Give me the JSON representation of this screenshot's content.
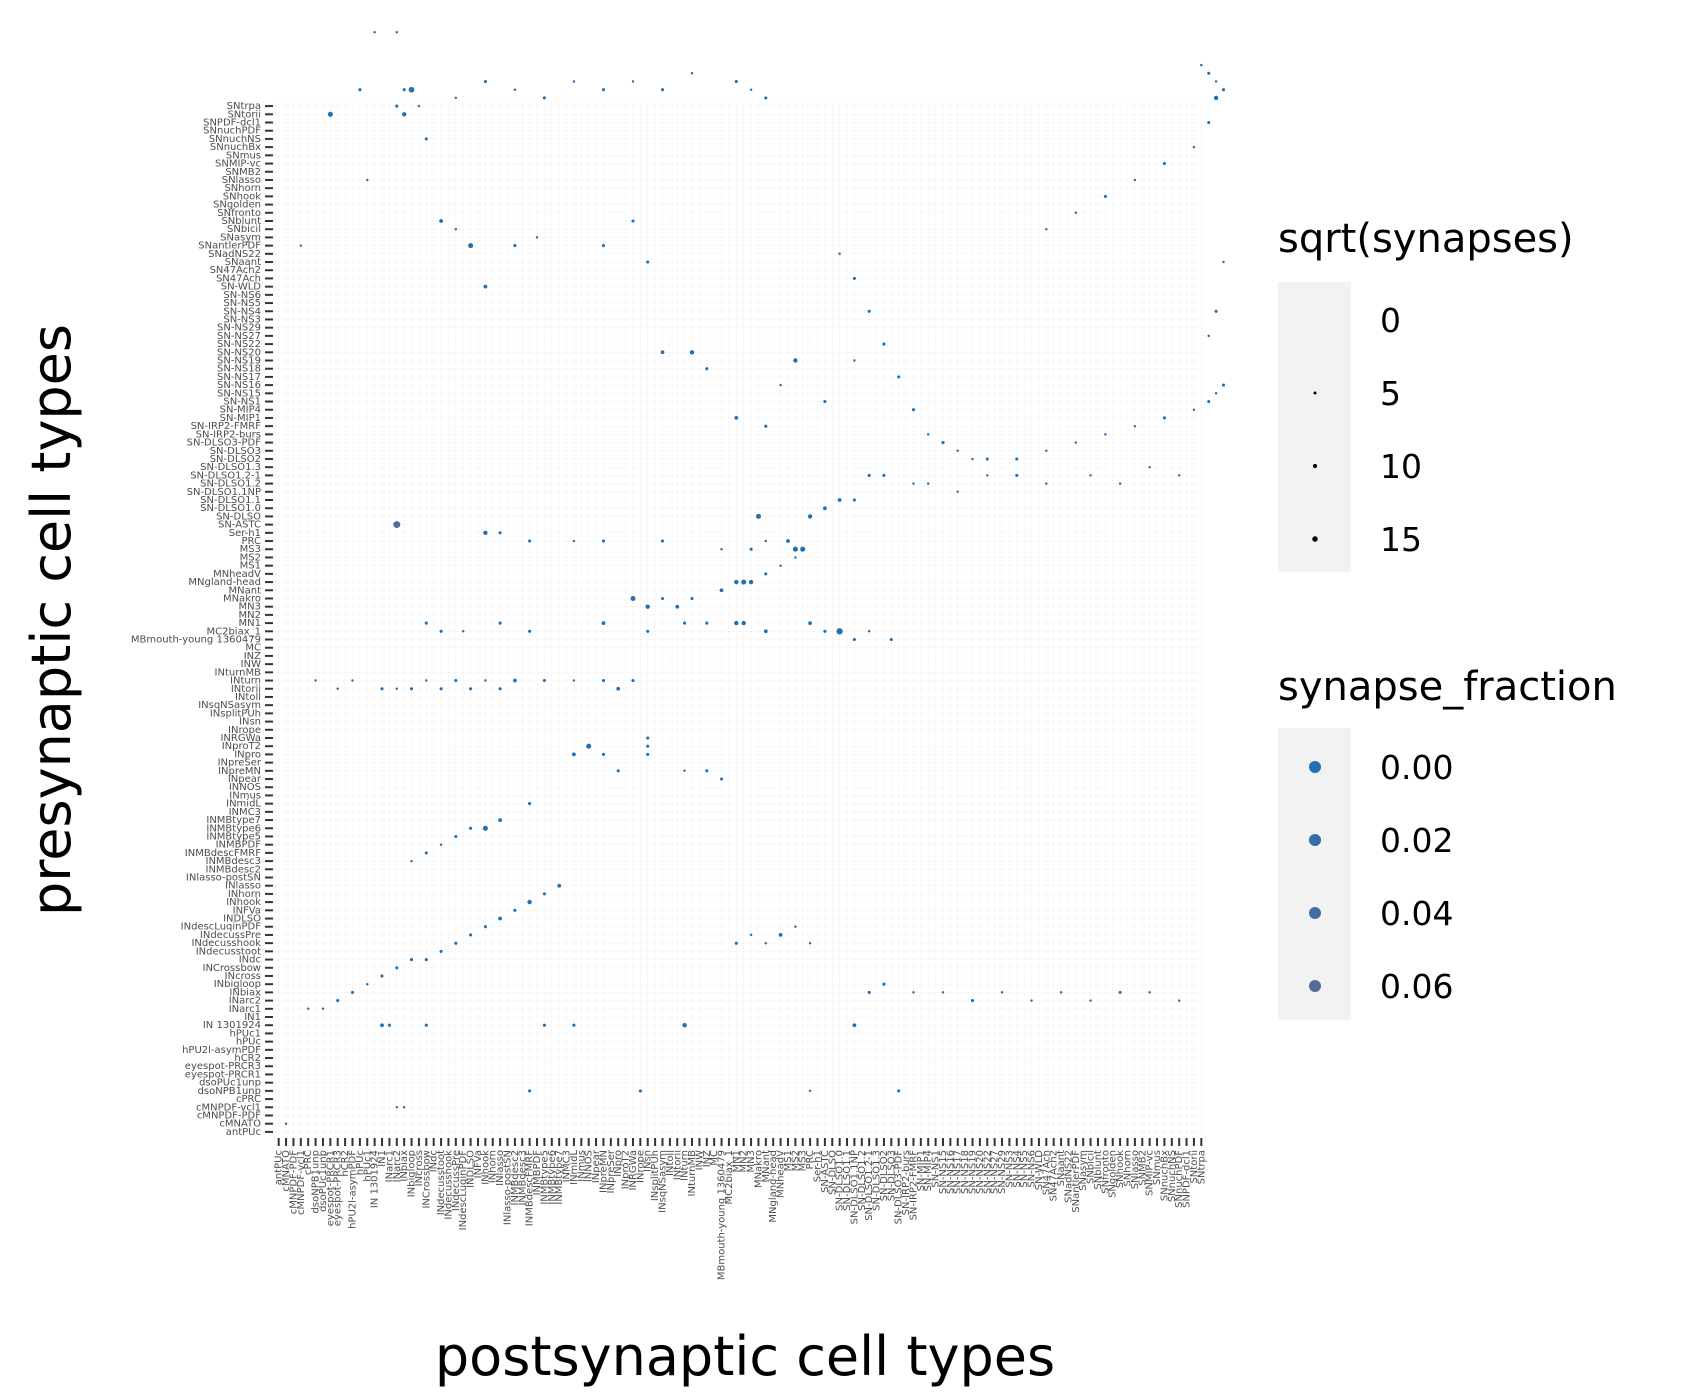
{
  "chart_data": {
    "type": "scatter",
    "xlabel": "postsynaptic cell types",
    "ylabel": "presynaptic cell types",
    "cell_types": [
      "antPUc",
      "cMNATO",
      "cMNPDF-PDF",
      "cMNPDF-vcl1",
      "cPRC",
      "dsoNPB1unp",
      "dsoPUc1unp",
      "eyespot-PRCR1",
      "eyespot-PRCR3",
      "hCR2",
      "hPU2l-asymPDF",
      "hPUc",
      "hPUc1",
      "IN 1301924",
      "IN1",
      "INarc1",
      "INarc2",
      "INbiax",
      "INbigloop",
      "INcross",
      "INCrossbow",
      "INdc",
      "INdecusstoot",
      "INdecusshook",
      "INdecussPre",
      "INdescLuqinPDF",
      "INDLSO",
      "INFVa",
      "INhook",
      "INhorn",
      "INlasso",
      "INlasso-postSN",
      "INMBdesc2",
      "INMBdesc3",
      "INMBdescFMRF",
      "INMBPDF",
      "INMBtype5",
      "INMBtype6",
      "INMBtype7",
      "INMC3",
      "INmidL",
      "INmus",
      "INNOS",
      "INpear",
      "INpreMN",
      "INpreSer",
      "INpro",
      "INproT2",
      "INRGWa",
      "INrope",
      "INsn",
      "INsplitPUh",
      "INsqNSasym",
      "INtoll",
      "INtorii",
      "INturn",
      "INturnMB",
      "INW",
      "INZ",
      "MC",
      "MBmouth-young 1360479",
      "MC2biax_1",
      "MN1",
      "MN2",
      "MN3",
      "MNakro",
      "MNant",
      "MNgland-head",
      "MNheadV",
      "MS1",
      "MS2",
      "MS3",
      "PRC",
      "Ser-h1",
      "SN-ASTC",
      "SN-DLSO",
      "SN-DLSO1.0",
      "SN-DLSO1.1",
      "SN-DLSO1.1NP",
      "SN-DLSO1.2",
      "SN-DLSO1.2-1",
      "SN-DLSO1.3",
      "SN-DLSO2",
      "SN-DLSO3",
      "SN-DLSO3-PDF",
      "SN-IRP2-burs",
      "SN-IRP2-FMRF",
      "SN-MIP1",
      "SN-MIP4",
      "SN-NS1",
      "SN-NS15",
      "SN-NS16",
      "SN-NS17",
      "SN-NS18",
      "SN-NS19",
      "SN-NS20",
      "SN-NS22",
      "SN-NS27",
      "SN-NS29",
      "SN-NS3",
      "SN-NS4",
      "SN-NS5",
      "SN-NS6",
      "SN-WLD",
      "SN47Ach",
      "SN47Ach2",
      "SNaant",
      "SNadNS22",
      "SNantlerPDF",
      "SNasym",
      "SNbicil",
      "SNblunt",
      "SNfronto",
      "SNgolden",
      "SNhook",
      "SNhorn",
      "SNlasso",
      "SNMB2",
      "SNMIP-vc",
      "SNmus",
      "SNnuchBx",
      "SNnuchNS",
      "SNnuchPDF",
      "SNPDF-dcl1",
      "SNtorii",
      "SNtrpa"
    ],
    "grid": true,
    "size_scale": "sqrt(synapses)",
    "color_scale": "synapse_fraction",
    "size_legend": {
      "title": "sqrt(synapses)",
      "breaks": [
        0,
        5,
        10,
        15
      ]
    },
    "color_legend": {
      "title": "synapse_fraction",
      "breaks": [
        0.0,
        0.02,
        0.04,
        0.06
      ],
      "labels": [
        "0.00",
        "0.02",
        "0.04",
        "0.06"
      ]
    },
    "points": [
      [
        55,
        13,
        5,
        0.004
      ],
      [
        14,
        13,
        4,
        0.002
      ],
      [
        15,
        13,
        3,
        0.002
      ],
      [
        20,
        13,
        3,
        0.002
      ],
      [
        78,
        13,
        4,
        0.003
      ],
      [
        36,
        13,
        3,
        0.002
      ],
      [
        40,
        13,
        3,
        0.002
      ],
      [
        1,
        1,
        2,
        0.001
      ],
      [
        16,
        3,
        2,
        0.001
      ],
      [
        17,
        3,
        2,
        0.001
      ],
      [
        34,
        5,
        3,
        0.002
      ],
      [
        49,
        5,
        3,
        0.002
      ],
      [
        72,
        5,
        2,
        0.001
      ],
      [
        84,
        5,
        3,
        0.002
      ],
      [
        3,
        108,
        2,
        0.001
      ],
      [
        7,
        124,
        6,
        0.006
      ],
      [
        11,
        127,
        3,
        0.002
      ],
      [
        12,
        116,
        2,
        0.001
      ],
      [
        13,
        134,
        2,
        0.001
      ],
      [
        16,
        134,
        2,
        0.001
      ],
      [
        17,
        127,
        3,
        0.002
      ],
      [
        18,
        127,
        7,
        0.008
      ],
      [
        16,
        125,
        3,
        0.002
      ],
      [
        17,
        124,
        5,
        0.004
      ],
      [
        19,
        125,
        2,
        0.001
      ],
      [
        20,
        121,
        3,
        0.002
      ],
      [
        22,
        111,
        4,
        0.003
      ],
      [
        24,
        110,
        2,
        0.001
      ],
      [
        26,
        108,
        6,
        0.006
      ],
      [
        28,
        103,
        4,
        0.003
      ],
      [
        32,
        108,
        3,
        0.002
      ],
      [
        35,
        109,
        2,
        0.001
      ],
      [
        44,
        108,
        3,
        0.002
      ],
      [
        48,
        111,
        3,
        0.002
      ],
      [
        50,
        106,
        3,
        0.002
      ],
      [
        52,
        95,
        4,
        0.003
      ],
      [
        56,
        95,
        5,
        0.004
      ],
      [
        58,
        93,
        3,
        0.002
      ],
      [
        62,
        87,
        4,
        0.003
      ],
      [
        66,
        86,
        3,
        0.002
      ],
      [
        68,
        91,
        2,
        0.001
      ],
      [
        70,
        94,
        5,
        0.004
      ],
      [
        74,
        89,
        3,
        0.002
      ],
      [
        78,
        94,
        2,
        0.001
      ],
      [
        80,
        80,
        3,
        0.002
      ],
      [
        82,
        80,
        3,
        0.002
      ],
      [
        86,
        79,
        2,
        0.001
      ],
      [
        88,
        79,
        2,
        0.001
      ],
      [
        92,
        78,
        2,
        0.001
      ],
      [
        96,
        80,
        2,
        0.001
      ],
      [
        100,
        80,
        3,
        0.002
      ],
      [
        104,
        79,
        2,
        0.001
      ],
      [
        110,
        80,
        2,
        0.001
      ],
      [
        114,
        79,
        2,
        0.001
      ],
      [
        118,
        81,
        2,
        0.001
      ],
      [
        122,
        80,
        2,
        0.001
      ],
      [
        16,
        74,
        9,
        0.06
      ],
      [
        65,
        75,
        6,
        0.005
      ],
      [
        72,
        75,
        5,
        0.004
      ],
      [
        74,
        76,
        4,
        0.003
      ],
      [
        76,
        77,
        4,
        0.003
      ],
      [
        78,
        77,
        3,
        0.002
      ],
      [
        28,
        73,
        5,
        0.004
      ],
      [
        30,
        73,
        3,
        0.002
      ],
      [
        34,
        72,
        3,
        0.002
      ],
      [
        40,
        72,
        2,
        0.001
      ],
      [
        44,
        72,
        3,
        0.002
      ],
      [
        52,
        72,
        3,
        0.002
      ],
      [
        60,
        71,
        2,
        0.001
      ],
      [
        64,
        71,
        3,
        0.002
      ],
      [
        66,
        72,
        2,
        0.001
      ],
      [
        69,
        72,
        4,
        0.003
      ],
      [
        70,
        71,
        6,
        0.006
      ],
      [
        71,
        71,
        6,
        0.006
      ],
      [
        62,
        67,
        5,
        0.004
      ],
      [
        63,
        67,
        6,
        0.005
      ],
      [
        64,
        67,
        5,
        0.004
      ],
      [
        66,
        68,
        3,
        0.002
      ],
      [
        68,
        69,
        2,
        0.001
      ],
      [
        70,
        70,
        2,
        0.001
      ],
      [
        48,
        65,
        6,
        0.005
      ],
      [
        50,
        64,
        5,
        0.004
      ],
      [
        52,
        65,
        3,
        0.002
      ],
      [
        54,
        64,
        4,
        0.003
      ],
      [
        56,
        65,
        3,
        0.002
      ],
      [
        60,
        66,
        4,
        0.003
      ],
      [
        20,
        62,
        3,
        0.002
      ],
      [
        22,
        61,
        3,
        0.002
      ],
      [
        25,
        61,
        2,
        0.001
      ],
      [
        30,
        62,
        3,
        0.002
      ],
      [
        34,
        61,
        3,
        0.002
      ],
      [
        44,
        62,
        4,
        0.003
      ],
      [
        50,
        61,
        3,
        0.002
      ],
      [
        55,
        62,
        3,
        0.002
      ],
      [
        58,
        62,
        3,
        0.002
      ],
      [
        62,
        62,
        5,
        0.004
      ],
      [
        63,
        62,
        5,
        0.004
      ],
      [
        66,
        61,
        4,
        0.003
      ],
      [
        72,
        62,
        4,
        0.003
      ],
      [
        74,
        61,
        3,
        0.002
      ],
      [
        76,
        61,
        8,
        0.012
      ],
      [
        78,
        60,
        3,
        0.002
      ],
      [
        80,
        61,
        2,
        0.001
      ],
      [
        83,
        60,
        3,
        0.002
      ],
      [
        48,
        55,
        3,
        0.002
      ],
      [
        46,
        54,
        4,
        0.003
      ],
      [
        44,
        55,
        3,
        0.002
      ],
      [
        40,
        55,
        2,
        0.001
      ],
      [
        36,
        55,
        3,
        0.002
      ],
      [
        32,
        55,
        4,
        0.003
      ],
      [
        30,
        54,
        3,
        0.002
      ],
      [
        28,
        55,
        2,
        0.001
      ],
      [
        26,
        54,
        3,
        0.002
      ],
      [
        24,
        55,
        3,
        0.002
      ],
      [
        22,
        54,
        3,
        0.002
      ],
      [
        20,
        55,
        2,
        0.001
      ],
      [
        18,
        54,
        3,
        0.002
      ],
      [
        16,
        54,
        2,
        0.001
      ],
      [
        14,
        54,
        3,
        0.002
      ],
      [
        10,
        55,
        2,
        0.001
      ],
      [
        8,
        54,
        2,
        0.001
      ],
      [
        5,
        55,
        2,
        0.001
      ],
      [
        50,
        46,
        3,
        0.002
      ],
      [
        50,
        47,
        3,
        0.002
      ],
      [
        50,
        48,
        3,
        0.002
      ],
      [
        55,
        44,
        2,
        0.001
      ],
      [
        58,
        44,
        3,
        0.002
      ],
      [
        60,
        43,
        3,
        0.002
      ],
      [
        40,
        46,
        4,
        0.003
      ],
      [
        42,
        47,
        6,
        0.006
      ],
      [
        44,
        46,
        3,
        0.002
      ],
      [
        46,
        44,
        3,
        0.002
      ],
      [
        34,
        40,
        3,
        0.002
      ],
      [
        30,
        38,
        4,
        0.003
      ],
      [
        28,
        37,
        6,
        0.006
      ],
      [
        26,
        37,
        3,
        0.002
      ],
      [
        24,
        36,
        3,
        0.002
      ],
      [
        22,
        35,
        2,
        0.001
      ],
      [
        20,
        34,
        3,
        0.002
      ],
      [
        18,
        33,
        2,
        0.001
      ],
      [
        38,
        30,
        4,
        0.003
      ],
      [
        36,
        29,
        3,
        0.002
      ],
      [
        34,
        28,
        5,
        0.004
      ],
      [
        32,
        27,
        3,
        0.002
      ],
      [
        30,
        26,
        4,
        0.003
      ],
      [
        28,
        25,
        3,
        0.002
      ],
      [
        26,
        24,
        3,
        0.002
      ],
      [
        24,
        23,
        3,
        0.002
      ],
      [
        22,
        22,
        3,
        0.002
      ],
      [
        20,
        21,
        3,
        0.002
      ],
      [
        18,
        21,
        3,
        0.002
      ],
      [
        16,
        20,
        3,
        0.002
      ],
      [
        14,
        19,
        3,
        0.002
      ],
      [
        12,
        18,
        2,
        0.001
      ],
      [
        10,
        17,
        3,
        0.002
      ],
      [
        8,
        16,
        3,
        0.002
      ],
      [
        6,
        15,
        2,
        0.001
      ],
      [
        4,
        15,
        2,
        0.001
      ],
      [
        62,
        23,
        3,
        0.002
      ],
      [
        64,
        24,
        2,
        0.001
      ],
      [
        66,
        23,
        2,
        0.001
      ],
      [
        68,
        24,
        4,
        0.003
      ],
      [
        70,
        25,
        2,
        0.001
      ],
      [
        72,
        23,
        2,
        0.001
      ],
      [
        80,
        17,
        3,
        0.002
      ],
      [
        82,
        18,
        3,
        0.002
      ],
      [
        86,
        17,
        2,
        0.001
      ],
      [
        90,
        17,
        2,
        0.001
      ],
      [
        94,
        16,
        3,
        0.002
      ],
      [
        98,
        17,
        2,
        0.001
      ],
      [
        102,
        16,
        2,
        0.001
      ],
      [
        106,
        17,
        2,
        0.001
      ],
      [
        110,
        16,
        2,
        0.001
      ],
      [
        114,
        17,
        3,
        0.002
      ],
      [
        118,
        17,
        2,
        0.001
      ],
      [
        122,
        16,
        2,
        0.001
      ],
      [
        76,
        107,
        2,
        0.001
      ],
      [
        78,
        104,
        3,
        0.002
      ],
      [
        80,
        100,
        3,
        0.002
      ],
      [
        82,
        96,
        3,
        0.002
      ],
      [
        84,
        92,
        3,
        0.002
      ],
      [
        86,
        88,
        3,
        0.002
      ],
      [
        88,
        85,
        2,
        0.001
      ],
      [
        90,
        84,
        3,
        0.002
      ],
      [
        92,
        83,
        2,
        0.001
      ],
      [
        94,
        82,
        2,
        0.001
      ],
      [
        96,
        82,
        3,
        0.002
      ],
      [
        100,
        82,
        3,
        0.002
      ],
      [
        104,
        83,
        2,
        0.001
      ],
      [
        108,
        84,
        2,
        0.001
      ],
      [
        112,
        85,
        2,
        0.001
      ],
      [
        116,
        86,
        2,
        0.001
      ],
      [
        120,
        87,
        3,
        0.002
      ],
      [
        124,
        88,
        2,
        0.001
      ],
      [
        126,
        89,
        3,
        0.002
      ],
      [
        127,
        90,
        2,
        0.001
      ],
      [
        128,
        91,
        3,
        0.002
      ],
      [
        126,
        97,
        2,
        0.001
      ],
      [
        127,
        100,
        3,
        0.002
      ],
      [
        128,
        106,
        2,
        0.001
      ],
      [
        104,
        110,
        2,
        0.001
      ],
      [
        108,
        112,
        2,
        0.001
      ],
      [
        112,
        114,
        3,
        0.002
      ],
      [
        116,
        116,
        2,
        0.001
      ],
      [
        120,
        118,
        3,
        0.002
      ],
      [
        124,
        120,
        2,
        0.001
      ],
      [
        126,
        123,
        3,
        0.002
      ],
      [
        127,
        126,
        5,
        0.004
      ],
      [
        128,
        127,
        3,
        0.002
      ],
      [
        127,
        128,
        2,
        0.001
      ],
      [
        126,
        129,
        3,
        0.002
      ],
      [
        125,
        130,
        2,
        0.001
      ],
      [
        62,
        128,
        3,
        0.002
      ],
      [
        64,
        127,
        2,
        0.001
      ],
      [
        66,
        126,
        3,
        0.002
      ],
      [
        56,
        129,
        2,
        0.001
      ],
      [
        52,
        127,
        3,
        0.002
      ],
      [
        48,
        128,
        2,
        0.001
      ],
      [
        44,
        127,
        3,
        0.002
      ],
      [
        40,
        128,
        2,
        0.001
      ],
      [
        36,
        126,
        3,
        0.002
      ],
      [
        32,
        127,
        2,
        0.001
      ],
      [
        28,
        128,
        3,
        0.002
      ],
      [
        24,
        126,
        2,
        0.001
      ]
    ]
  }
}
